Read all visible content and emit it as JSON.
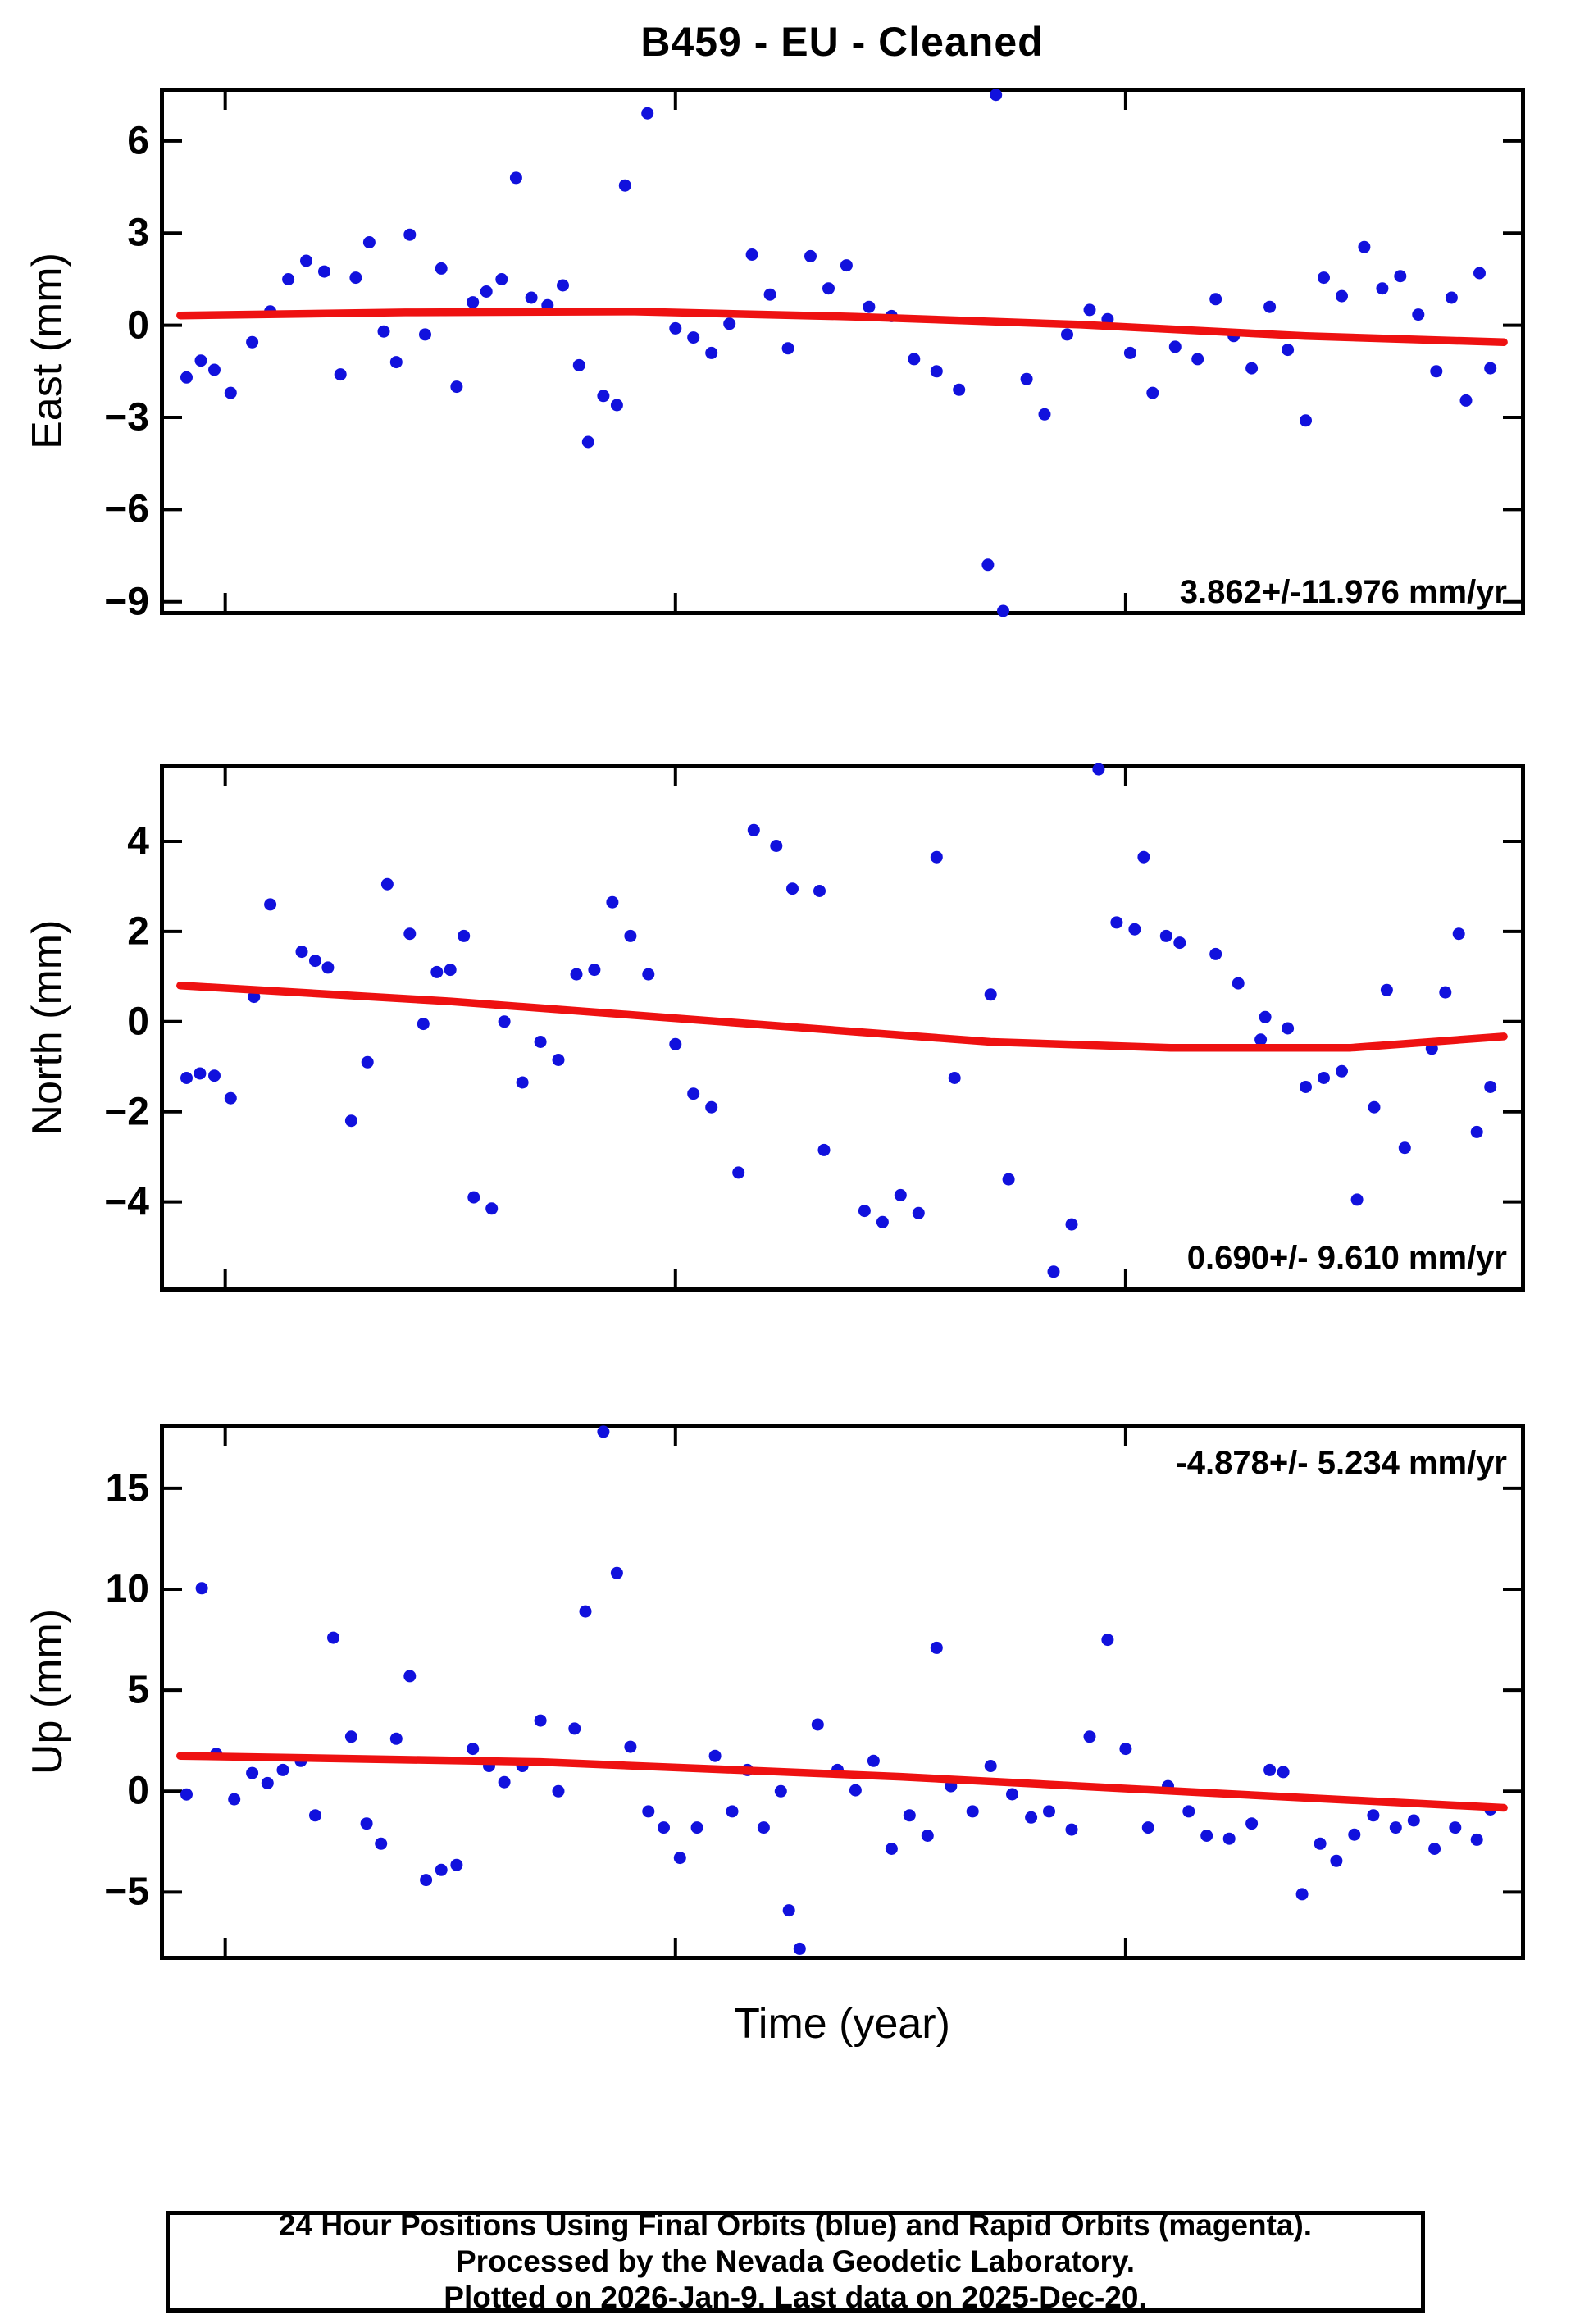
{
  "title": "B459  - EU - Cleaned",
  "xlabel": "Time (year)",
  "caption": {
    "line1": "24 Hour Positions Using Final Orbits (blue) and Rapid Orbits (magenta).",
    "line2": "Processed by the Nevada Geodetic Laboratory.",
    "line3": "Plotted on 2026-Jan-9. Last data on 2025-Dec-20."
  },
  "colors": {
    "point_blue": "#1111dd",
    "trend_red": "#ee1111",
    "frame_black": "#000000"
  },
  "chart_data": {
    "type": "scatter",
    "title": "B459  - EU - Cleaned",
    "xlabel": "Time (year)",
    "xlim": [
      2024.432,
      2025.939
    ],
    "xticks": [
      2024.5,
      2025.0,
      2025.5
    ],
    "x_tick_labels_shown": false,
    "grid": false,
    "legend": "none",
    "panels": [
      {
        "name": "east",
        "ylabel": "East (mm)",
        "ylim": [
          -9.3,
          7.6
        ],
        "yticks": [
          6,
          3,
          0,
          -3,
          -6,
          -9
        ],
        "annotation": "3.862+/-11.976 mm/yr",
        "annotation_corner": "bottom-right",
        "trend": [
          [
            2024.45,
            0.32
          ],
          [
            2024.7,
            0.42
          ],
          [
            2024.95,
            0.45
          ],
          [
            2025.2,
            0.28
          ],
          [
            2025.45,
            0.02
          ],
          [
            2025.7,
            -0.35
          ],
          [
            2025.92,
            -0.55
          ]
        ],
        "points": [
          [
            2024.457,
            -1.7
          ],
          [
            2024.473,
            -1.15
          ],
          [
            2024.488,
            -1.45
          ],
          [
            2024.506,
            -2.2
          ],
          [
            2024.53,
            -0.55
          ],
          [
            2024.55,
            0.45
          ],
          [
            2024.57,
            1.5
          ],
          [
            2024.59,
            2.1
          ],
          [
            2024.61,
            1.75
          ],
          [
            2024.628,
            -1.6
          ],
          [
            2024.645,
            1.55
          ],
          [
            2024.66,
            2.7
          ],
          [
            2024.676,
            -0.2
          ],
          [
            2024.69,
            -1.2
          ],
          [
            2024.705,
            2.95
          ],
          [
            2024.722,
            -0.3
          ],
          [
            2024.74,
            1.85
          ],
          [
            2024.757,
            -2.0
          ],
          [
            2024.775,
            0.75
          ],
          [
            2024.79,
            1.1
          ],
          [
            2024.807,
            1.5
          ],
          [
            2024.823,
            4.8
          ],
          [
            2024.84,
            0.9
          ],
          [
            2024.858,
            0.65
          ],
          [
            2024.875,
            1.3
          ],
          [
            2024.893,
            -1.3
          ],
          [
            2024.903,
            -3.8
          ],
          [
            2024.92,
            -2.3
          ],
          [
            2024.935,
            -2.6
          ],
          [
            2024.944,
            4.55
          ],
          [
            2024.969,
            6.9
          ],
          [
            2025.0,
            -0.1
          ],
          [
            2025.02,
            -0.4
          ],
          [
            2025.04,
            -0.9
          ],
          [
            2025.06,
            0.05
          ],
          [
            2025.085,
            2.3
          ],
          [
            2025.105,
            1.0
          ],
          [
            2025.125,
            -0.75
          ],
          [
            2025.15,
            2.25
          ],
          [
            2025.17,
            1.2
          ],
          [
            2025.19,
            1.95
          ],
          [
            2025.215,
            0.6
          ],
          [
            2025.24,
            0.3
          ],
          [
            2025.265,
            -1.1
          ],
          [
            2025.29,
            -1.5
          ],
          [
            2025.315,
            -2.1
          ],
          [
            2025.347,
            -7.8
          ],
          [
            2025.356,
            7.5
          ],
          [
            2025.364,
            -9.3
          ],
          [
            2025.39,
            -1.75
          ],
          [
            2025.41,
            -2.9
          ],
          [
            2025.435,
            -0.3
          ],
          [
            2025.46,
            0.5
          ],
          [
            2025.48,
            0.2
          ],
          [
            2025.505,
            -0.9
          ],
          [
            2025.53,
            -2.2
          ],
          [
            2025.555,
            -0.7
          ],
          [
            2025.58,
            -1.1
          ],
          [
            2025.6,
            0.85
          ],
          [
            2025.62,
            -0.35
          ],
          [
            2025.64,
            -1.4
          ],
          [
            2025.66,
            0.6
          ],
          [
            2025.68,
            -0.8
          ],
          [
            2025.7,
            -3.1
          ],
          [
            2025.72,
            1.55
          ],
          [
            2025.74,
            0.95
          ],
          [
            2025.765,
            2.55
          ],
          [
            2025.785,
            1.2
          ],
          [
            2025.805,
            1.6
          ],
          [
            2025.825,
            0.35
          ],
          [
            2025.845,
            -1.5
          ],
          [
            2025.862,
            0.9
          ],
          [
            2025.878,
            -2.45
          ],
          [
            2025.893,
            1.7
          ],
          [
            2025.905,
            -1.4
          ]
        ]
      },
      {
        "name": "north",
        "ylabel": "North (mm)",
        "ylim": [
          -5.9,
          5.62
        ],
        "yticks": [
          4,
          2,
          0,
          -2,
          -4
        ],
        "annotation": "0.690+/- 9.610 mm/yr",
        "annotation_corner": "bottom-right",
        "trend": [
          [
            2024.45,
            0.8
          ],
          [
            2024.75,
            0.45
          ],
          [
            2025.05,
            0.0
          ],
          [
            2025.35,
            -0.45
          ],
          [
            2025.55,
            -0.58
          ],
          [
            2025.75,
            -0.58
          ],
          [
            2025.92,
            -0.33
          ]
        ],
        "points": [
          [
            2024.457,
            -1.25
          ],
          [
            2024.472,
            -1.15
          ],
          [
            2024.488,
            -1.2
          ],
          [
            2024.506,
            -1.7
          ],
          [
            2024.532,
            0.55
          ],
          [
            2024.55,
            2.6
          ],
          [
            2024.585,
            1.55
          ],
          [
            2024.6,
            1.35
          ],
          [
            2024.614,
            1.2
          ],
          [
            2024.64,
            -2.2
          ],
          [
            2024.658,
            -0.9
          ],
          [
            2024.68,
            3.05
          ],
          [
            2024.705,
            1.95
          ],
          [
            2024.72,
            -0.05
          ],
          [
            2024.735,
            1.1
          ],
          [
            2024.75,
            1.15
          ],
          [
            2024.765,
            1.9
          ],
          [
            2024.776,
            -3.9
          ],
          [
            2024.796,
            -4.15
          ],
          [
            2024.81,
            0.0
          ],
          [
            2024.83,
            -1.35
          ],
          [
            2024.85,
            -0.45
          ],
          [
            2024.87,
            -0.85
          ],
          [
            2024.89,
            1.05
          ],
          [
            2024.91,
            1.15
          ],
          [
            2024.93,
            2.65
          ],
          [
            2024.95,
            1.9
          ],
          [
            2024.97,
            1.05
          ],
          [
            2025.0,
            -0.5
          ],
          [
            2025.02,
            -1.6
          ],
          [
            2025.04,
            -1.9
          ],
          [
            2025.07,
            -3.35
          ],
          [
            2025.087,
            4.25
          ],
          [
            2025.112,
            3.9
          ],
          [
            2025.13,
            2.95
          ],
          [
            2025.16,
            2.9
          ],
          [
            2025.165,
            -2.85
          ],
          [
            2025.21,
            -4.2
          ],
          [
            2025.23,
            -4.45
          ],
          [
            2025.25,
            -3.85
          ],
          [
            2025.27,
            -4.25
          ],
          [
            2025.29,
            3.65
          ],
          [
            2025.31,
            -1.25
          ],
          [
            2025.35,
            0.6
          ],
          [
            2025.37,
            -3.5
          ],
          [
            2025.42,
            -5.55
          ],
          [
            2025.44,
            -4.5
          ],
          [
            2025.47,
            5.6
          ],
          [
            2025.49,
            2.2
          ],
          [
            2025.51,
            2.05
          ],
          [
            2025.52,
            3.65
          ],
          [
            2025.545,
            1.9
          ],
          [
            2025.56,
            1.75
          ],
          [
            2025.6,
            1.5
          ],
          [
            2025.625,
            0.85
          ],
          [
            2025.65,
            -0.4
          ],
          [
            2025.655,
            0.1
          ],
          [
            2025.68,
            -0.15
          ],
          [
            2025.7,
            -1.45
          ],
          [
            2025.72,
            -1.25
          ],
          [
            2025.74,
            -1.1
          ],
          [
            2025.757,
            -3.95
          ],
          [
            2025.776,
            -1.9
          ],
          [
            2025.79,
            0.7
          ],
          [
            2025.81,
            -2.8
          ],
          [
            2025.84,
            -0.6
          ],
          [
            2025.855,
            0.65
          ],
          [
            2025.87,
            1.95
          ],
          [
            2025.89,
            -2.45
          ],
          [
            2025.905,
            -1.45
          ]
        ]
      },
      {
        "name": "up",
        "ylabel": "Up (mm)",
        "ylim": [
          -8.15,
          18.0
        ],
        "yticks": [
          15,
          10,
          5,
          0,
          -5
        ],
        "annotation": "-4.878+/- 5.234 mm/yr",
        "annotation_corner": "top-right",
        "trend": [
          [
            2024.45,
            1.75
          ],
          [
            2024.85,
            1.45
          ],
          [
            2025.25,
            0.72
          ],
          [
            2025.6,
            -0.1
          ],
          [
            2025.92,
            -0.82
          ]
        ],
        "points": [
          [
            2024.457,
            -0.16
          ],
          [
            2024.474,
            10.05
          ],
          [
            2024.49,
            1.85
          ],
          [
            2024.51,
            -0.4
          ],
          [
            2024.53,
            0.9
          ],
          [
            2024.547,
            0.4
          ],
          [
            2024.564,
            1.05
          ],
          [
            2024.584,
            1.5
          ],
          [
            2024.6,
            -1.2
          ],
          [
            2024.62,
            7.6
          ],
          [
            2024.64,
            2.7
          ],
          [
            2024.657,
            -1.6
          ],
          [
            2024.673,
            -2.6
          ],
          [
            2024.69,
            2.6
          ],
          [
            2024.705,
            5.7
          ],
          [
            2024.723,
            -4.4
          ],
          [
            2024.74,
            -3.9
          ],
          [
            2024.757,
            -3.65
          ],
          [
            2024.775,
            2.1
          ],
          [
            2024.793,
            1.25
          ],
          [
            2024.81,
            0.45
          ],
          [
            2024.83,
            1.25
          ],
          [
            2024.85,
            3.5
          ],
          [
            2024.87,
            0.0
          ],
          [
            2024.888,
            3.1
          ],
          [
            2024.9,
            8.9
          ],
          [
            2024.92,
            17.8
          ],
          [
            2024.935,
            10.8
          ],
          [
            2024.95,
            2.2
          ],
          [
            2024.97,
            -1.0
          ],
          [
            2024.987,
            -1.8
          ],
          [
            2025.005,
            -3.3
          ],
          [
            2025.024,
            -1.8
          ],
          [
            2025.044,
            1.75
          ],
          [
            2025.063,
            -1.0
          ],
          [
            2025.08,
            1.05
          ],
          [
            2025.098,
            -1.8
          ],
          [
            2025.117,
            0.0
          ],
          [
            2025.126,
            -5.9
          ],
          [
            2025.138,
            -7.8
          ],
          [
            2025.158,
            3.3
          ],
          [
            2025.18,
            1.05
          ],
          [
            2025.2,
            0.05
          ],
          [
            2025.22,
            1.5
          ],
          [
            2025.24,
            -2.85
          ],
          [
            2025.26,
            -1.2
          ],
          [
            2025.28,
            -2.2
          ],
          [
            2025.29,
            7.1
          ],
          [
            2025.306,
            0.25
          ],
          [
            2025.33,
            -1.0
          ],
          [
            2025.35,
            1.25
          ],
          [
            2025.374,
            -0.15
          ],
          [
            2025.395,
            -1.3
          ],
          [
            2025.415,
            -1.0
          ],
          [
            2025.44,
            -1.9
          ],
          [
            2025.46,
            2.7
          ],
          [
            2025.48,
            7.5
          ],
          [
            2025.5,
            2.1
          ],
          [
            2025.525,
            -1.8
          ],
          [
            2025.547,
            0.25
          ],
          [
            2025.57,
            -1.0
          ],
          [
            2025.59,
            -2.2
          ],
          [
            2025.615,
            -2.35
          ],
          [
            2025.64,
            -1.6
          ],
          [
            2025.66,
            1.05
          ],
          [
            2025.675,
            0.95
          ],
          [
            2025.696,
            -5.1
          ],
          [
            2025.716,
            -2.6
          ],
          [
            2025.734,
            -3.45
          ],
          [
            2025.754,
            -2.15
          ],
          [
            2025.775,
            -1.2
          ],
          [
            2025.8,
            -1.8
          ],
          [
            2025.82,
            -1.45
          ],
          [
            2025.843,
            -2.85
          ],
          [
            2025.866,
            -1.8
          ],
          [
            2025.89,
            -2.4
          ],
          [
            2025.905,
            -0.9
          ]
        ]
      }
    ]
  }
}
